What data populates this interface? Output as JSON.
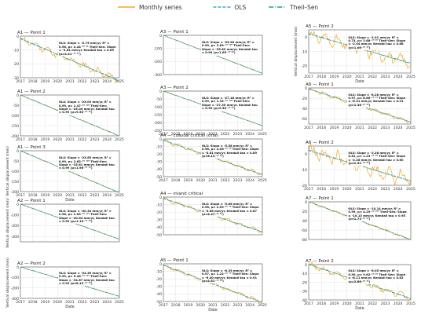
{
  "legend": {
    "items": [
      {
        "label": "Monthly series",
        "color": "#f5a623",
        "dash": "none"
      },
      {
        "label": "OLS",
        "color": "#3aa7d6",
        "dash": "4,2"
      },
      {
        "label": "Theil–Sen",
        "color": "#2a9d6f",
        "dash": "6,2,1,2"
      }
    ]
  },
  "chart_data": [
    {
      "type": "line",
      "title": "A1 — Point 1",
      "ylabel": "",
      "xlabel": "",
      "ylim": [
        -30,
        0
      ],
      "yticks": [
        0,
        -10,
        -20,
        -30
      ],
      "xticks": [
        "2017",
        "2018",
        "2019",
        "2020",
        "2021",
        "2022",
        "2023",
        "2024",
        "2025"
      ],
      "show_xticks": true,
      "annotation": "OLS: Slope = -3.75 mm/yr, R² = 0.96, p= 2.44⁻¹⁰ ⁶⁵ Theil-Sen: Slope = -3.81 mm/yr, Kendall tau = 0.89 (p=4.41⁻¹⁰ ⁴¹)",
      "start": -2,
      "end": -32,
      "noise": 3.0,
      "seed": 11
    },
    {
      "type": "line",
      "title": "A1 — Point 2",
      "ylabel": "",
      "xlabel": "",
      "ylim": [
        -200,
        0
      ],
      "yticks": [
        0,
        -50,
        -100,
        -150,
        -200
      ],
      "xticks": [
        "2017",
        "2018",
        "2019",
        "2020",
        "2021",
        "2022",
        "2023",
        "2024",
        "2025"
      ],
      "show_xticks": true,
      "annotation": "OLS: Slope = -25.09 mm/yr, R² = 0.99, p= 1.47⁻¹⁰ ¹²⁸ Theil-Sen: Slope = -25.04 mm/yr, Kendall tau = 0.99 (p=9.50⁻¹⁰ ⁶³)",
      "start": 0,
      "end": -200,
      "noise": 2.0,
      "seed": 12
    },
    {
      "type": "line",
      "title": "A1 — Point 3",
      "ylabel": "Vertical displacement (mm)",
      "xlabel": "Date",
      "ylim": [
        -200,
        0
      ],
      "yticks": [
        0,
        -50,
        -100,
        -150,
        -200
      ],
      "xticks": [
        "2017",
        "2018",
        "2019",
        "2020",
        "2021",
        "2022",
        "2023",
        "2024",
        "2025"
      ],
      "show_xticks": true,
      "annotation": "OLS: Slope = -25.65 mm/yr, R² = 0.99, p= 2.65⁻¹⁰ ¹²⁹ Theil-Sen: Slope = -25.61 mm/yr, Kendall tau = 0.99 (p=1.96⁻¹⁰ ⁶⁵)",
      "start": 0,
      "end": -205,
      "noise": 2.0,
      "seed": 13
    },
    {
      "type": "line",
      "title": "A2 — Point 1",
      "ylabel": "Vertical displacement (mm)",
      "xlabel": "",
      "ylim": [
        -350,
        0
      ],
      "yticks": [
        0,
        -100,
        -200,
        -300
      ],
      "xticks": [
        "2017",
        "2018",
        "2019",
        "2020",
        "2021",
        "2022",
        "2023",
        "2024",
        "2025"
      ],
      "show_xticks": false,
      "annotation": "OLS: Slope = -40.34 mm/yr, R² = 0.98, p= 2.63⁻¹⁰ ¹¹⁹ Theil-Sen: Slope = -40.64 mm/yr, Kendall tau = 0.99 (p=1.15⁻¹⁰ ⁶³)",
      "start": 0,
      "end": -325,
      "noise": 3.0,
      "seed": 14
    },
    {
      "type": "line",
      "title": "A2 — Point 2",
      "ylabel": "Vertical displacement (mm)",
      "xlabel": "Date",
      "ylim": [
        -300,
        0
      ],
      "yticks": [
        0,
        -100,
        -200,
        -300
      ],
      "xticks": [
        "2017",
        "2018",
        "2019",
        "2020",
        "2021",
        "2022",
        "2023",
        "2024",
        "2025"
      ],
      "show_xticks": true,
      "annotation": "OLS: Slope = -34.30 mm/yr, R² = 0.99, p= 5.46⁻¹⁰ ¹¹⁵ Theil-Sen: Slope = -34.67 mm/yr, Kendall tau = 0.99 (p=6.19⁻¹⁰ ⁶²)",
      "start": 0,
      "end": -280,
      "noise": 3.0,
      "seed": 15
    },
    {
      "type": "line",
      "title": "A3 — Point 1",
      "ylabel": "",
      "xlabel": "",
      "ylim": [
        -300,
        0
      ],
      "yticks": [
        0,
        -100,
        -200,
        -300
      ],
      "xticks": [
        "2017",
        "2018",
        "2019",
        "2020",
        "2021",
        "2022",
        "2023",
        "2024",
        "2025"
      ],
      "show_xticks": false,
      "annotation": "OLS: Slope = -35.90 mm/yr, R² = 0.99, p= 3.89⁻¹⁰ ¹²⁹ Theil-Sen: Slope = -35.89 mm/yr, Kendall tau = 0.99 (p=1.65⁻¹⁰ ⁶⁴)",
      "start": 0,
      "end": -290,
      "noise": 2.0,
      "seed": 21
    },
    {
      "type": "line",
      "title": "A3 — Point 2",
      "ylabel": "",
      "xlabel": "",
      "ylim": [
        -250,
        0
      ],
      "yticks": [
        0,
        -50,
        -100,
        -150,
        -200,
        -250
      ],
      "xticks": [
        "2017",
        "2018",
        "2019",
        "2020",
        "2021",
        "2022",
        "2023",
        "2024",
        "2025"
      ],
      "show_xticks": true,
      "annotation": "OLS: Slope = -27.18 mm/yr, R² = 0.99, p= 1.32⁻¹⁰ ¹²⁸ Theil-Sen: Slope = -27.30 mm/yr, Kendall tau = 0.99 (p=9.50⁻¹⁰ ⁶³)",
      "start": 0,
      "end": -220,
      "noise": 2.0,
      "seed": 22
    },
    {
      "type": "line",
      "title": "A4 — coastal critical (órla)",
      "ylabel": "",
      "xlabel": "",
      "ylim": [
        -50,
        0
      ],
      "yticks": [
        0,
        -10,
        -20,
        -30,
        -40,
        -50
      ],
      "xticks": [
        "2017",
        "2018",
        "2019",
        "2020",
        "2021",
        "2022",
        "2023",
        "2024",
        "2025"
      ],
      "show_xticks": true,
      "annotation": "OLS: Slope = -5.58 mm/yr, R² = 0.96, p= 4.06⁻¹⁰ ⁶⁹ Theil-Sen: Slope = -5.61 mm/yr, Kendall tau = 0.89 (p=6.13⁻¹⁰ ⁴²)",
      "start": -2,
      "end": -47,
      "noise": 3.0,
      "seed": 23
    },
    {
      "type": "line",
      "title": "A4 — inland critical",
      "ylabel": "",
      "xlabel": "",
      "ylim": [
        -50,
        0
      ],
      "yticks": [
        0,
        -10,
        -20,
        -30,
        -40,
        -50
      ],
      "xticks": [
        "2017",
        "2018",
        "2019",
        "2020",
        "2021",
        "2022",
        "2023",
        "2024",
        "2025"
      ],
      "show_xticks": false,
      "annotation": "OLS: Slope = -5.66 mm/yr, R² = 0.96, p= 2.09⁻¹⁰ ⁷⁰ Theil-Sen: Slope = -5.66 mm/yr, Kendall tau = 0.87 (p=4.47⁻¹⁰ ⁴⁰)",
      "start": -2,
      "end": -46,
      "noise": 3.0,
      "seed": 24
    },
    {
      "type": "line",
      "title": "A5 — Point 1",
      "ylabel": "",
      "xlabel": "Date",
      "ylim": [
        -50,
        0
      ],
      "yticks": [
        0,
        -10,
        -20,
        -30,
        -40,
        -50
      ],
      "xticks": [
        "2017",
        "2018",
        "2019",
        "2020",
        "2021",
        "2022",
        "2023",
        "2024",
        "2025"
      ],
      "show_xticks": true,
      "annotation": "OLS: Slope = -6.35 mm/yr, R² = 0.97, p= 1.22⁻¹⁰ ⁷⁰ Theil-Sen: Slope = -6.40 mm/yr, Kendall tau = 0.91 (p=4.61⁻¹⁰ ⁴²)",
      "start": -2,
      "end": -51,
      "noise": 2.5,
      "seed": 25
    },
    {
      "type": "line",
      "title": "A5 — Point 2",
      "ylabel": "Vertical displacement (mm)",
      "xlabel": "Date",
      "ylim": [
        -25,
        5
      ],
      "yticks": [
        0,
        -10,
        -20
      ],
      "xticks": [
        "2017",
        "2018",
        "2019",
        "2020",
        "2021",
        "2022",
        "2023",
        "2024",
        "2025"
      ],
      "show_xticks": true,
      "annotation": "OLS: Slope = -2.01 mm/yr, R² = 0.73, p= 3.68⁻¹⁰ ²⁸ Theil-Sen: Slope = -2.04 mm/yr, Kendall tau = 0.68 (p=1.06⁻¹⁰ ²⁵)",
      "start": 2,
      "end": -18,
      "noise": 5.0,
      "seed": 31
    },
    {
      "type": "line",
      "title": "A6 — Point 1",
      "ylabel": "",
      "xlabel": "",
      "ylim": [
        -70,
        0
      ],
      "yticks": [
        0,
        -20,
        -40,
        -60
      ],
      "xticks": [
        "2017",
        "2018",
        "2019",
        "2020",
        "2021",
        "2022",
        "2023",
        "2024",
        "2025"
      ],
      "show_xticks": true,
      "annotation": "OLS: Slope = -8.28 mm/yr, R² = 0.97, p= 8.86⁻¹⁰ ⁷² Theil-Sen: Slope = -8.31 mm/yr, Kendall tau = 0.91 (p=1.36⁻¹⁰ ⁴²)",
      "start": -2,
      "end": -66,
      "noise": 4.0,
      "seed": 32
    },
    {
      "type": "line",
      "title": "A6 — Point 2",
      "ylabel": "",
      "xlabel": "",
      "ylim": [
        -20,
        5
      ],
      "yticks": [
        0,
        -10,
        -20
      ],
      "xticks": [
        "2017",
        "2018",
        "2019",
        "2020",
        "2021",
        "2022",
        "2023",
        "2024",
        "2025"
      ],
      "show_xticks": true,
      "annotation": "OLS: Slope = -2.28 mm/yr, R² = 0.61, p= 1.23⁻¹⁰ ¹⁸ Theil-Sen: Slope = -2.28 mm/yr, Kendall tau = 0.60 (p=2.52⁻¹⁰ ²⁰)",
      "start": 2,
      "end": -17,
      "noise": 5.5,
      "seed": 33
    },
    {
      "type": "line",
      "title": "A7 — Point 1",
      "ylabel": "",
      "xlabel": "",
      "ylim": [
        -80,
        0
      ],
      "yticks": [
        0,
        -20,
        -40,
        -60,
        -80
      ],
      "xticks": [
        "2017",
        "2018",
        "2019",
        "2020",
        "2021",
        "2022",
        "2023",
        "2024",
        "2025"
      ],
      "show_xticks": false,
      "annotation": "OLS: Slope = -10.14 mm/yr, R² = 0.99, p= 4.29⁻¹⁰ ¹⁰⁰ Theil-Sen: Slope = -10.13 mm/yr, Kendall tau = 0.95 (p=1.73⁻¹⁰ ⁴⁹)",
      "start": 0,
      "end": -80,
      "noise": 2.5,
      "seed": 34
    },
    {
      "type": "line",
      "title": "A7 — Point 2",
      "ylabel": "",
      "xlabel": "Date",
      "ylim": [
        -40,
        0
      ],
      "yticks": [
        0,
        -10,
        -20,
        -30,
        -40
      ],
      "xticks": [
        "2017",
        "2018",
        "2019",
        "2020",
        "2021",
        "2022",
        "2023",
        "2024",
        "2025"
      ],
      "show_xticks": true,
      "annotation": "OLS: Slope = -6.05 mm/yr, R² = 0.90, p= 9.62⁻¹⁰ ⁴⁸ Theil-Sen: Slope = -6.11 mm/yr, Kendall tau = 0.82 (p=2.66⁻¹⁰ ³⁵)",
      "start": 0,
      "end": -38,
      "noise": 4.0,
      "seed": 35
    }
  ]
}
